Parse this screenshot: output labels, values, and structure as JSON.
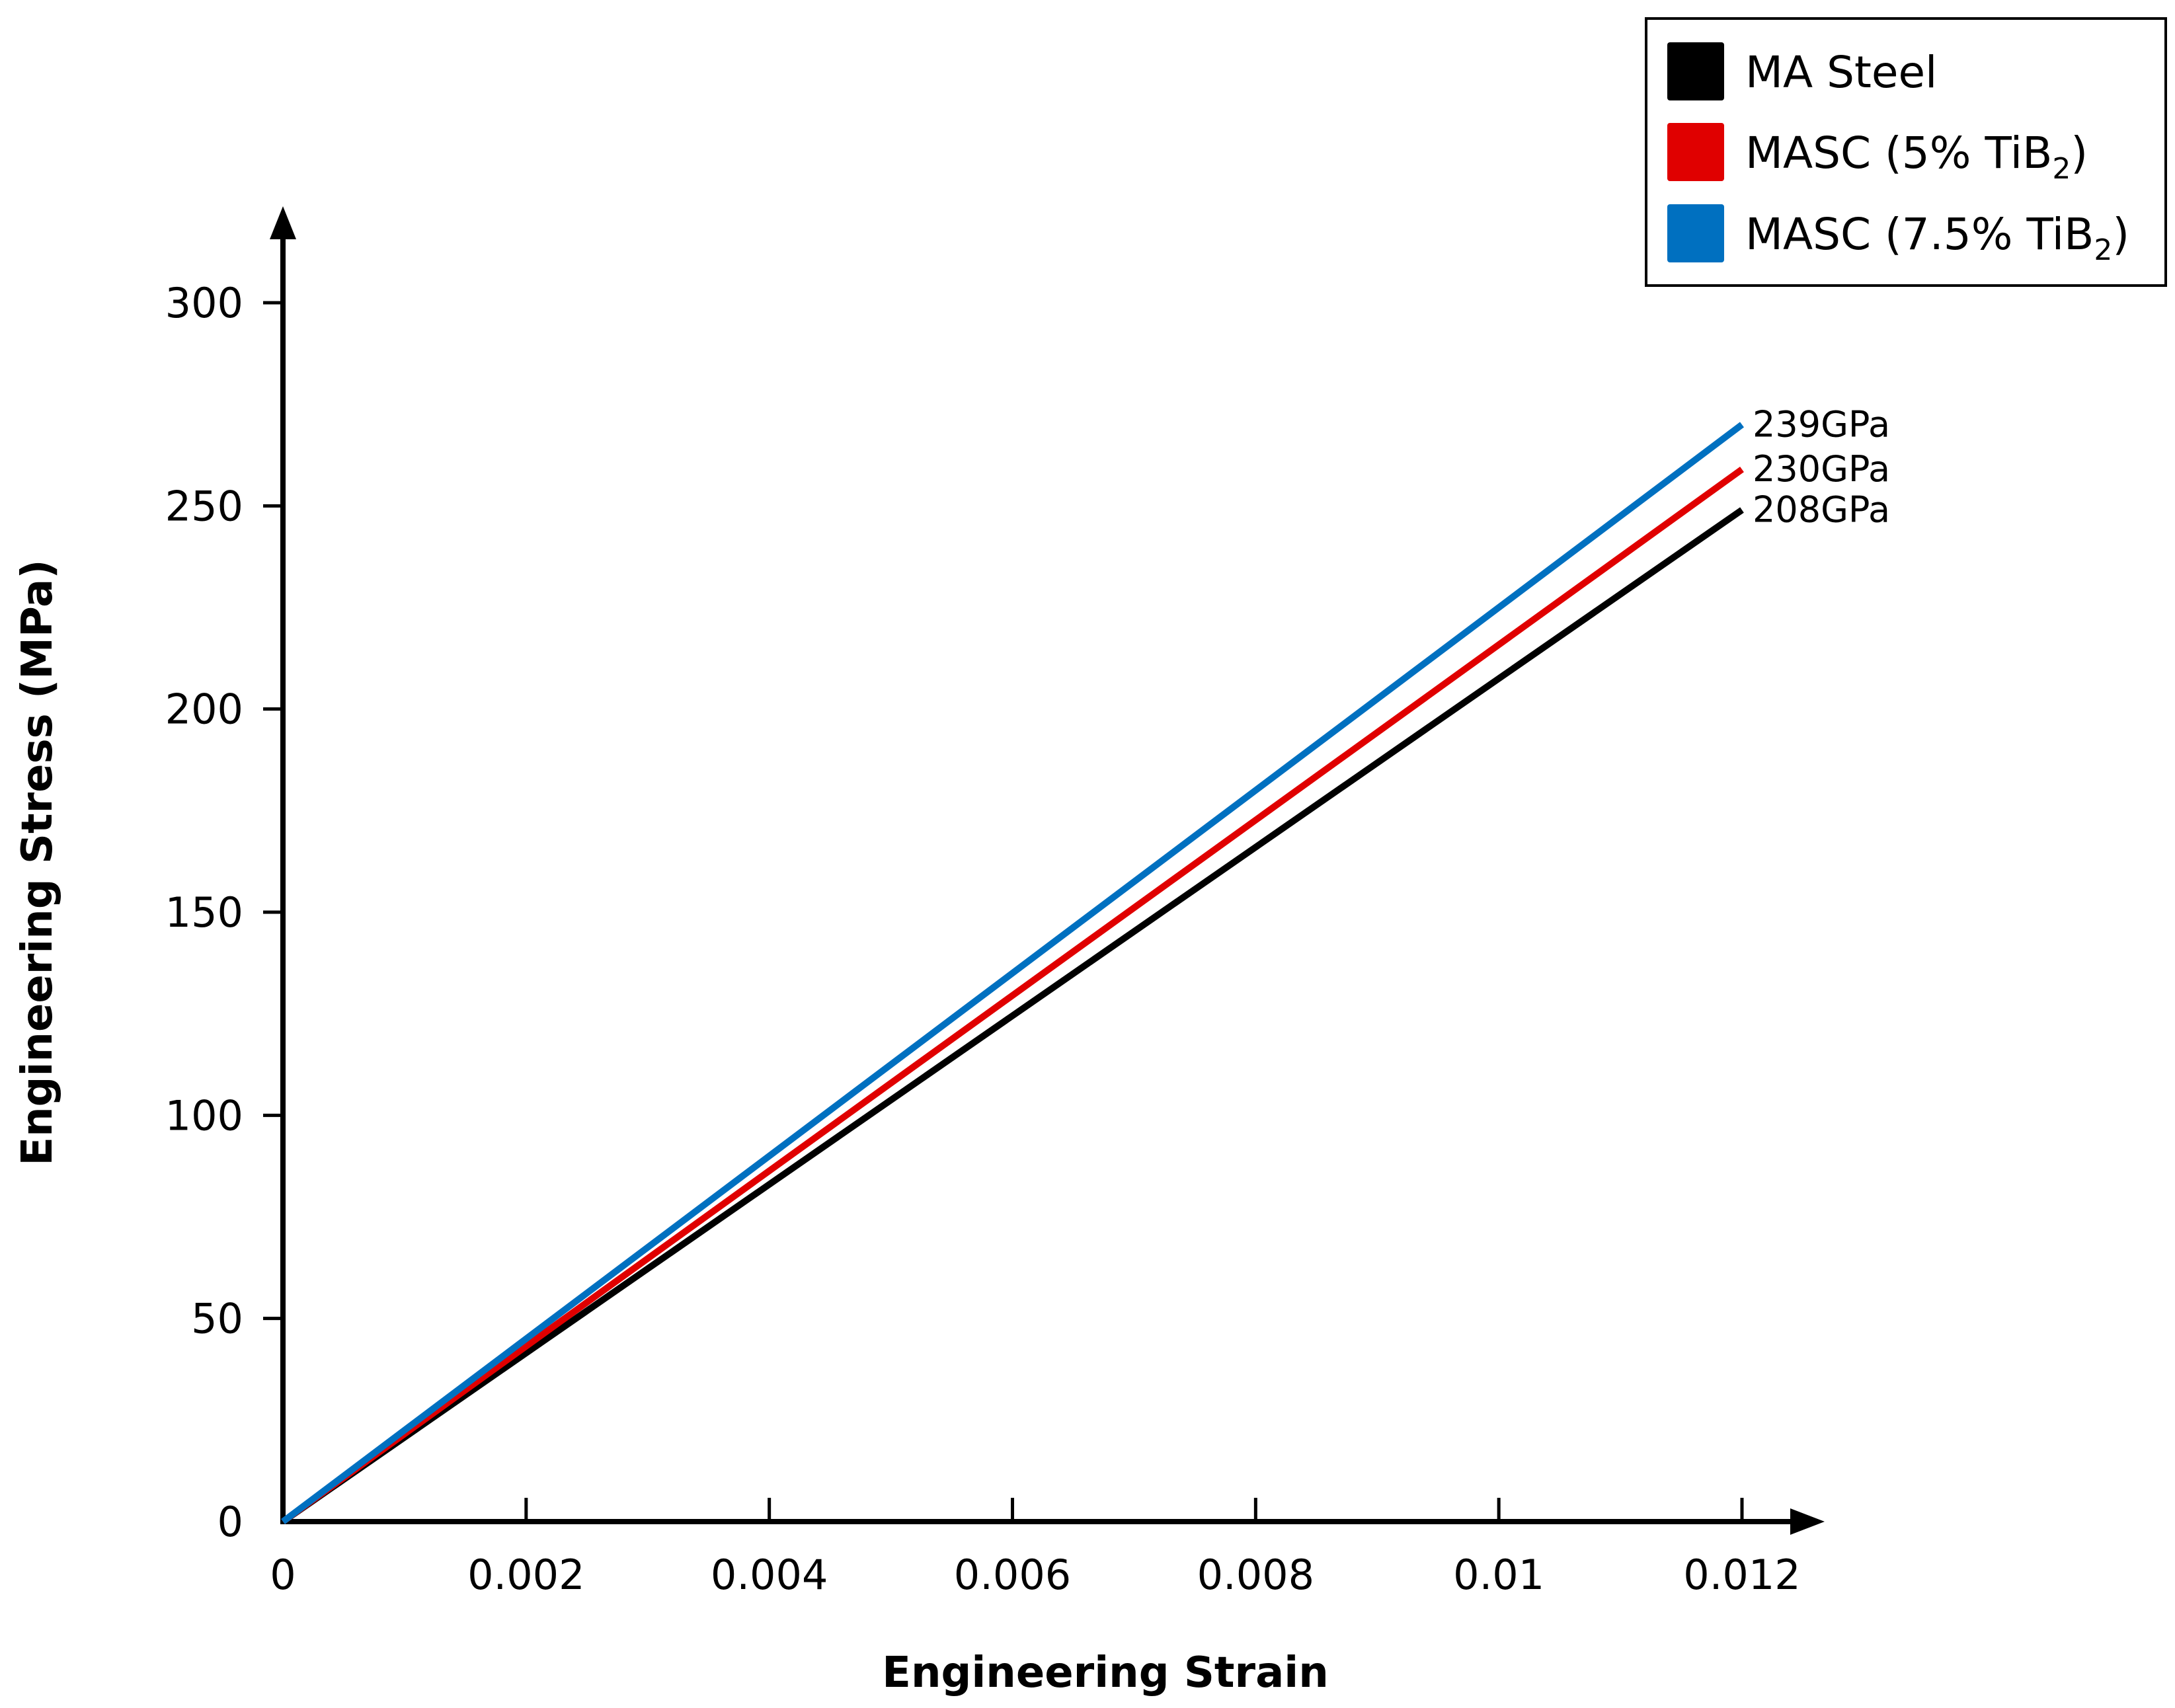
{
  "chart_data": {
    "type": "line",
    "title": "",
    "xlabel": "Engineering Strain",
    "ylabel": "Engineering Stress (MPa)",
    "xlim": [
      0,
      0.0126
    ],
    "ylim": [
      0,
      320
    ],
    "grid": false,
    "legend_position": "top-right",
    "x_ticks": [
      0,
      0.002,
      0.004,
      0.006,
      0.008,
      0.01,
      0.012
    ],
    "x_tick_labels": [
      "0",
      "0.002",
      "0.004",
      "0.006",
      "0.008",
      "0.01",
      "0.012"
    ],
    "y_ticks": [
      0,
      50,
      100,
      150,
      200,
      250,
      300
    ],
    "y_tick_labels": [
      "0",
      "50",
      "100",
      "150",
      "200",
      "250",
      "300"
    ],
    "series": [
      {
        "name": "MA Steel",
        "legend_main": "MA Steel",
        "legend_sub": "",
        "legend_suffix": "",
        "color": "#000000",
        "x": [
          0,
          0.012
        ],
        "y": [
          0,
          249
        ],
        "end_label": "208GPa"
      },
      {
        "name": "MASC (5% TiB2)",
        "legend_main": "MASC (5% TiB",
        "legend_sub": "2",
        "legend_suffix": ")",
        "color": "#e00000",
        "x": [
          0,
          0.012
        ],
        "y": [
          0,
          259
        ],
        "end_label": "230GPa"
      },
      {
        "name": "MASC (7.5% TiB2)",
        "legend_main": "MASC (7.5% TiB",
        "legend_sub": "2",
        "legend_suffix": ")",
        "color": "#0070c0",
        "x": [
          0,
          0.012
        ],
        "y": [
          0,
          270
        ],
        "end_label": "239GPa"
      }
    ]
  }
}
